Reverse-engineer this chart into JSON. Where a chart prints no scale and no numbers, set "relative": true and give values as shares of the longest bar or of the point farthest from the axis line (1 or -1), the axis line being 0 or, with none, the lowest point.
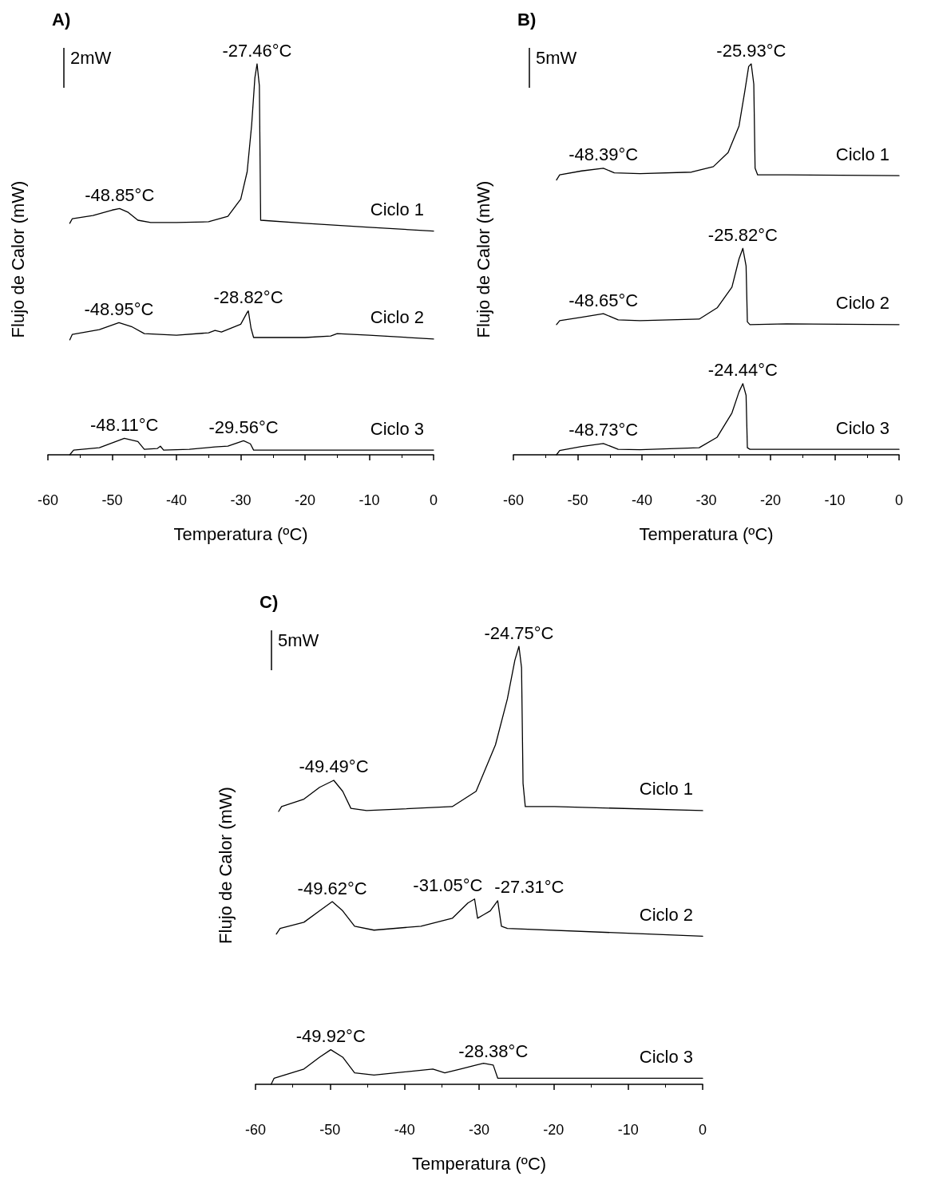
{
  "chart_data": [
    {
      "type": "line",
      "title": "A)",
      "xlabel": "Temperatura (ºC)",
      "ylabel": "Flujo de Calor (mW)",
      "relative": true,
      "xlim": [
        -60,
        0
      ],
      "xticks": [
        -60,
        -50,
        -40,
        -30,
        -20,
        -10,
        0
      ],
      "grid": false,
      "legend": false,
      "marker": "none",
      "line_style": "solid",
      "annotations": [
        "2mW",
        {
          "text": "-27.46°C",
          "x": -27.46,
          "y": 1
        },
        {
          "text": "-48.85°C",
          "x": -48.85,
          "y": 0.63
        },
        {
          "text": "-48.95°C",
          "x": -48.95,
          "y": 0.338
        },
        {
          "text": "-28.82°C",
          "x": -28.82,
          "y": 0.368
        },
        {
          "text": "-48.11°C",
          "x": -48.11,
          "y": 0.042
        },
        {
          "text": "-29.56°C",
          "x": -29.56,
          "y": 0.036
        }
      ],
      "series": [
        {
          "name": "Ciclo 1",
          "color": "#000000",
          "x": [
            -56.6,
            -56.2,
            -53,
            -50,
            -48.85,
            -47.5,
            -46,
            -44,
            -40,
            -35,
            -32,
            -30,
            -29,
            -28.3,
            -27.8,
            -27.46,
            -27.1,
            -26.9,
            -20,
            -10,
            0
          ],
          "values": [
            0.592,
            0.604,
            0.612,
            0.626,
            0.63,
            0.62,
            0.6,
            0.594,
            0.594,
            0.596,
            0.61,
            0.654,
            0.724,
            0.844,
            0.964,
            1,
            0.944,
            0.6,
            0.592,
            0.582,
            0.572
          ]
        },
        {
          "name": "Ciclo 2",
          "color": "#000000",
          "x": [
            -56.6,
            -56.2,
            -52,
            -48.95,
            -47,
            -45,
            -40,
            -35,
            -34,
            -33,
            -30,
            -29,
            -28.82,
            -28.4,
            -28,
            -20,
            -16,
            -15,
            -10,
            0
          ],
          "values": [
            0.294,
            0.308,
            0.32,
            0.338,
            0.328,
            0.31,
            0.306,
            0.312,
            0.318,
            0.314,
            0.334,
            0.364,
            0.368,
            0.324,
            0.3,
            0.3,
            0.304,
            0.31,
            0.306,
            0.296
          ]
        },
        {
          "name": "Ciclo 3",
          "color": "#000000",
          "x": [
            -56.6,
            -56,
            -52,
            -48.11,
            -46,
            -45,
            -43,
            -42.5,
            -42,
            -38,
            -34,
            -32,
            -29.56,
            -28.5,
            -28,
            -20,
            0
          ],
          "values": [
            0,
            0.012,
            0.018,
            0.042,
            0.034,
            0.014,
            0.016,
            0.022,
            0.012,
            0.014,
            0.02,
            0.022,
            0.036,
            0.028,
            0.012,
            0.012,
            0.012
          ]
        }
      ]
    },
    {
      "type": "line",
      "title": "B)",
      "xlabel": "Temperatura (ºC)",
      "ylabel": "Flujo de Calor (mW)",
      "relative": true,
      "xlim": [
        -60,
        0
      ],
      "xticks": [
        -60,
        -50,
        -40,
        -30,
        -20,
        -10,
        0
      ],
      "grid": false,
      "legend": false,
      "marker": "none",
      "line_style": "solid",
      "annotations": [
        "5mW",
        {
          "text": "-25.93°C",
          "x": -23,
          "y": 1
        },
        {
          "text": "-48.39°C",
          "x": -46,
          "y": 0.733
        },
        {
          "text": "-25.82°C",
          "x": -24.3,
          "y": 0.528
        },
        {
          "text": "-48.65°C",
          "x": -46,
          "y": 0.361
        },
        {
          "text": "-24.44°C",
          "x": -24.3,
          "y": 0.182
        },
        {
          "text": "-48.73°C",
          "x": -46,
          "y": 0.029
        }
      ],
      "series": [
        {
          "name": "Ciclo 1",
          "color": "#000000",
          "x": [
            -53.3,
            -52.8,
            -49.4,
            -46,
            -44.3,
            -40.3,
            -32.3,
            -28.9,
            -26.6,
            -24.9,
            -24,
            -23.4,
            -23,
            -22.6,
            -22.4,
            -22,
            -17.5,
            0
          ],
          "values": [
            0.703,
            0.716,
            0.726,
            0.733,
            0.721,
            0.719,
            0.723,
            0.737,
            0.773,
            0.841,
            0.93,
            0.993,
            1,
            0.948,
            0.733,
            0.716,
            0.716,
            0.714
          ]
        },
        {
          "name": "Ciclo 2",
          "color": "#000000",
          "x": [
            -53.3,
            -52.8,
            -49.4,
            -46,
            -43.7,
            -40.3,
            -31.1,
            -28.3,
            -26,
            -24.9,
            -24.3,
            -23.8,
            -23.6,
            -23.2,
            -17.5,
            0
          ],
          "values": [
            0.333,
            0.343,
            0.352,
            0.361,
            0.345,
            0.343,
            0.347,
            0.376,
            0.429,
            0.501,
            0.528,
            0.483,
            0.34,
            0.333,
            0.335,
            0.333
          ]
        },
        {
          "name": "Ciclo 3",
          "color": "#000000",
          "x": [
            -53.3,
            -52.8,
            -49.4,
            -46,
            -43.7,
            -40.3,
            -31.1,
            -28.3,
            -26,
            -24.9,
            -24.3,
            -23.8,
            -23.6,
            -23.2,
            0
          ],
          "values": [
            0,
            0.011,
            0.021,
            0.029,
            0.014,
            0.013,
            0.018,
            0.045,
            0.107,
            0.161,
            0.182,
            0.152,
            0.018,
            0.014,
            0.014
          ]
        }
      ]
    },
    {
      "type": "line",
      "title": "C)",
      "xlabel": "Temperatura (ºC)",
      "ylabel": "Flujo de Calor (mW)",
      "relative": true,
      "xlim": [
        -60,
        0
      ],
      "xticks": [
        -60,
        -50,
        -40,
        -30,
        -20,
        -10,
        0
      ],
      "grid": false,
      "legend": false,
      "marker": "none",
      "line_style": "solid",
      "annotations": [
        "5mW",
        {
          "text": "-24.75°C",
          "x": -24.65,
          "y": 1
        },
        {
          "text": "-49.49°C",
          "x": -49.5,
          "y": 0.694
        },
        {
          "text": "-49.62°C",
          "x": -49.7,
          "y": 0.417
        },
        {
          "text": "-31.05°C",
          "x": -30.6,
          "y": 0.423
        },
        {
          "text": "-27.31°C",
          "x": -27.5,
          "y": 0.419
        },
        {
          "text": "-49.92°C",
          "x": -49.9,
          "y": 0.079
        },
        {
          "text": "-28.38°C",
          "x": -28.1,
          "y": 0.044
        }
      ],
      "series": [
        {
          "name": "Ciclo 1",
          "color": "#000000",
          "x": [
            -56.9,
            -56.5,
            -53.5,
            -51.4,
            -49.5,
            -48.3,
            -47.2,
            -45.1,
            -33.6,
            -30.4,
            -27.8,
            -26.2,
            -25.2,
            -24.65,
            -24.3,
            -24.1,
            -23.8,
            -19.9,
            0
          ],
          "values": [
            0.623,
            0.634,
            0.651,
            0.678,
            0.694,
            0.669,
            0.63,
            0.625,
            0.634,
            0.669,
            0.775,
            0.88,
            0.968,
            1,
            0.951,
            0.687,
            0.634,
            0.634,
            0.625
          ]
        },
        {
          "name": "Ciclo 2",
          "color": "#000000",
          "x": [
            -57.2,
            -56.7,
            -53.5,
            -51.4,
            -49.7,
            -48.3,
            -46.7,
            -44.1,
            -37.8,
            -33.6,
            -31.5,
            -30.6,
            -30.2,
            -29.4,
            -28.5,
            -27.5,
            -27,
            -26.2,
            0
          ],
          "values": [
            0.343,
            0.356,
            0.37,
            0.396,
            0.417,
            0.396,
            0.361,
            0.352,
            0.361,
            0.379,
            0.414,
            0.423,
            0.379,
            0.387,
            0.396,
            0.419,
            0.361,
            0.356,
            0.338
          ]
        },
        {
          "name": "Ciclo 3",
          "color": "#000000",
          "x": [
            -57.9,
            -57.5,
            -53.5,
            -51.4,
            -49.9,
            -48.3,
            -46.7,
            -44.1,
            -36.2,
            -34.6,
            -32.5,
            -30.4,
            -29.4,
            -28.1,
            -27.5,
            0
          ],
          "values": [
            0,
            0.014,
            0.035,
            0.062,
            0.079,
            0.062,
            0.026,
            0.021,
            0.035,
            0.026,
            0.035,
            0.044,
            0.048,
            0.044,
            0.014,
            0.014
          ]
        }
      ]
    }
  ]
}
